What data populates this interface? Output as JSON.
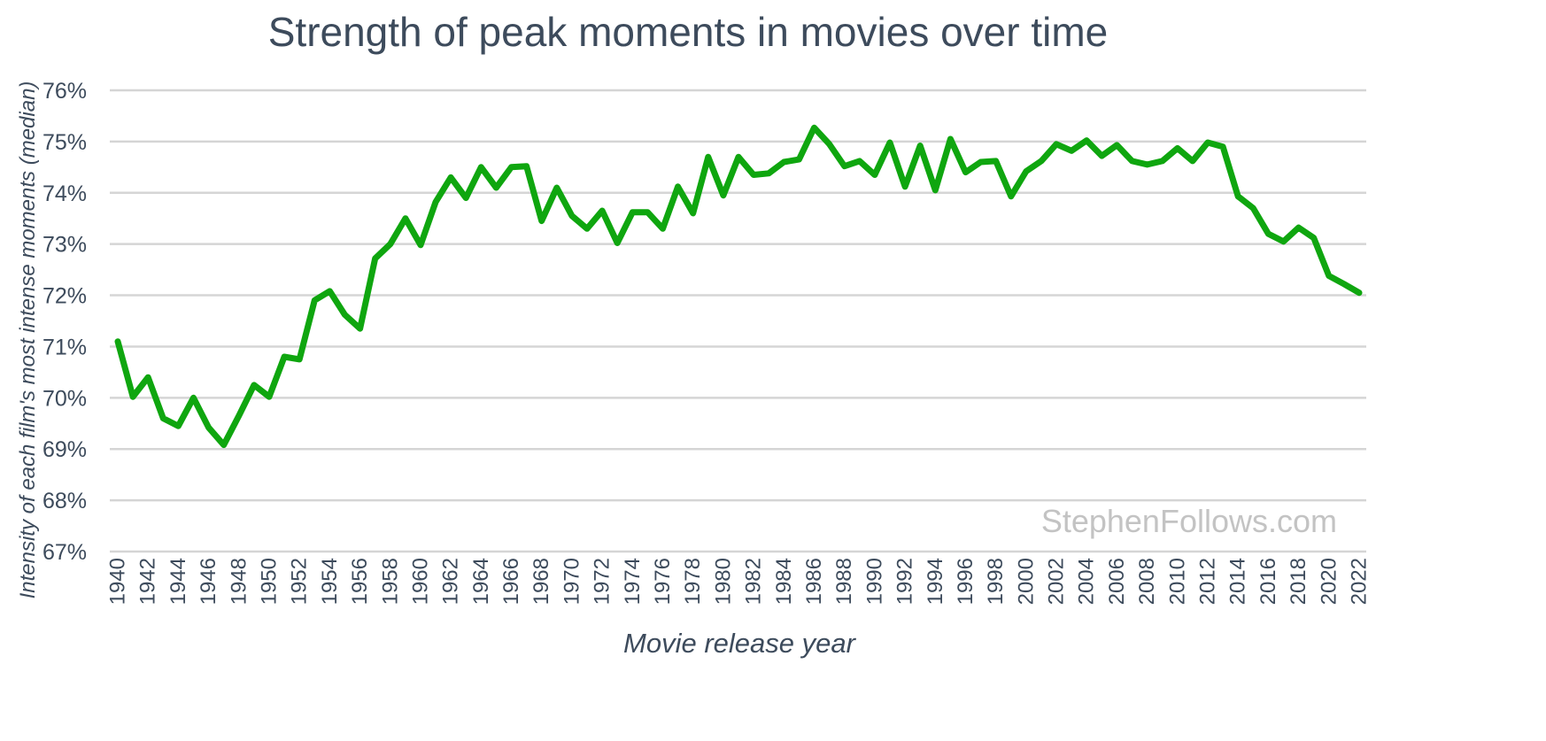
{
  "chart_data": {
    "type": "line",
    "title": "Strength of peak moments in movies over time",
    "xlabel": "Movie release year",
    "ylabel": "Intensity of each film's most intense moments (median)",
    "ylim": [
      67,
      76
    ],
    "y_tick_values": [
      67,
      68,
      69,
      70,
      71,
      72,
      73,
      74,
      75,
      76
    ],
    "y_tick_labels": [
      "67%",
      "68%",
      "69%",
      "70%",
      "71%",
      "72%",
      "73%",
      "74%",
      "75%",
      "76%"
    ],
    "x_tick_labels": [
      "1940",
      "1942",
      "1944",
      "1946",
      "1948",
      "1950",
      "1952",
      "1954",
      "1956",
      "1958",
      "1960",
      "1962",
      "1964",
      "1966",
      "1968",
      "1970",
      "1972",
      "1974",
      "1976",
      "1978",
      "1980",
      "1982",
      "1984",
      "1986",
      "1988",
      "1990",
      "1992",
      "1994",
      "1996",
      "1998",
      "2000",
      "2002",
      "2004",
      "2006",
      "2008",
      "2010",
      "2012",
      "2014",
      "2016",
      "2018",
      "2020",
      "2022"
    ],
    "grid": true,
    "line_color": "#0fa60f",
    "watermark": "StephenFollows.com",
    "series": [
      {
        "x": [
          1940,
          1941,
          1942,
          1943,
          1944,
          1945,
          1946,
          1947,
          1948,
          1949,
          1950,
          1951,
          1952,
          1953,
          1954,
          1955,
          1956,
          1957,
          1958,
          1959,
          1960,
          1961,
          1962,
          1963,
          1964,
          1965,
          1966,
          1967,
          1968,
          1969,
          1970,
          1971,
          1972,
          1973,
          1974,
          1975,
          1976,
          1977,
          1978,
          1979,
          1980,
          1981,
          1982,
          1983,
          1984,
          1985,
          1986,
          1987,
          1988,
          1989,
          1990,
          1991,
          1992,
          1993,
          1994,
          1995,
          1996,
          1997,
          1998,
          1999,
          2000,
          2001,
          2002,
          2003,
          2004,
          2005,
          2006,
          2007,
          2008,
          2009,
          2010,
          2011,
          2012,
          2013,
          2014,
          2015,
          2016,
          2017,
          2018,
          2019,
          2020,
          2021,
          2022
        ],
        "values": [
          71.1,
          70.02,
          70.4,
          69.6,
          69.45,
          70.0,
          69.42,
          69.08,
          69.65,
          70.25,
          70.02,
          70.8,
          70.75,
          71.9,
          72.08,
          71.62,
          71.35,
          72.72,
          73.0,
          73.5,
          72.98,
          73.82,
          74.3,
          73.9,
          74.5,
          74.1,
          74.5,
          74.52,
          73.45,
          74.1,
          73.55,
          73.3,
          73.65,
          73.02,
          73.62,
          73.62,
          73.3,
          74.12,
          73.6,
          74.7,
          73.95,
          74.7,
          74.35,
          74.38,
          74.6,
          74.65,
          75.27,
          74.95,
          74.52,
          74.62,
          74.35,
          74.98,
          74.12,
          74.92,
          74.05,
          75.05,
          74.4,
          74.6,
          74.62,
          73.93,
          74.42,
          74.62,
          74.95,
          74.82,
          75.02,
          74.72,
          74.93,
          74.62,
          74.55,
          74.62,
          74.87,
          74.62,
          74.98,
          74.9,
          73.93,
          73.7,
          73.2,
          73.05,
          73.32,
          73.12,
          72.38,
          72.22,
          72.05
        ]
      }
    ]
  }
}
